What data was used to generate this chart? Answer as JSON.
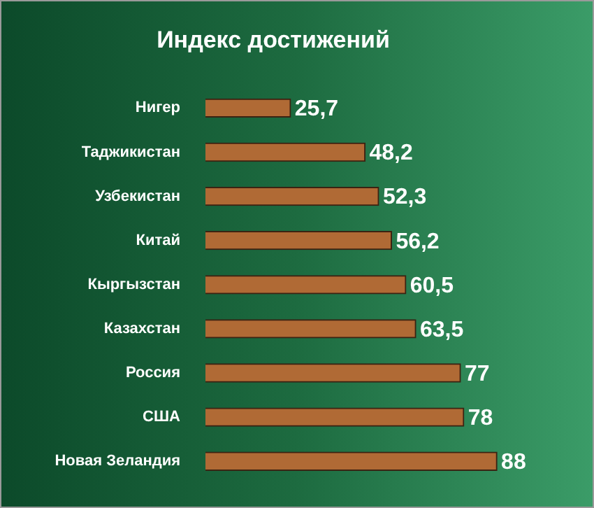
{
  "chart_data": {
    "type": "bar",
    "orientation": "horizontal",
    "title": "Индекс достижений",
    "categories": [
      "Нигер",
      "Таджикистан",
      "Узбекистан",
      "Китай",
      "Кыргызстан",
      "Казахстан",
      "Россия",
      "США",
      "Новая Зеландия"
    ],
    "values": [
      25.7,
      48.2,
      52.3,
      56.2,
      60.5,
      63.5,
      77,
      78,
      88
    ],
    "color": "#b06a35",
    "value_labels": [
      "25,7",
      "48,2",
      "52,3",
      "56,2",
      "60,5",
      "63,5",
      "77",
      "78",
      "88"
    ]
  }
}
